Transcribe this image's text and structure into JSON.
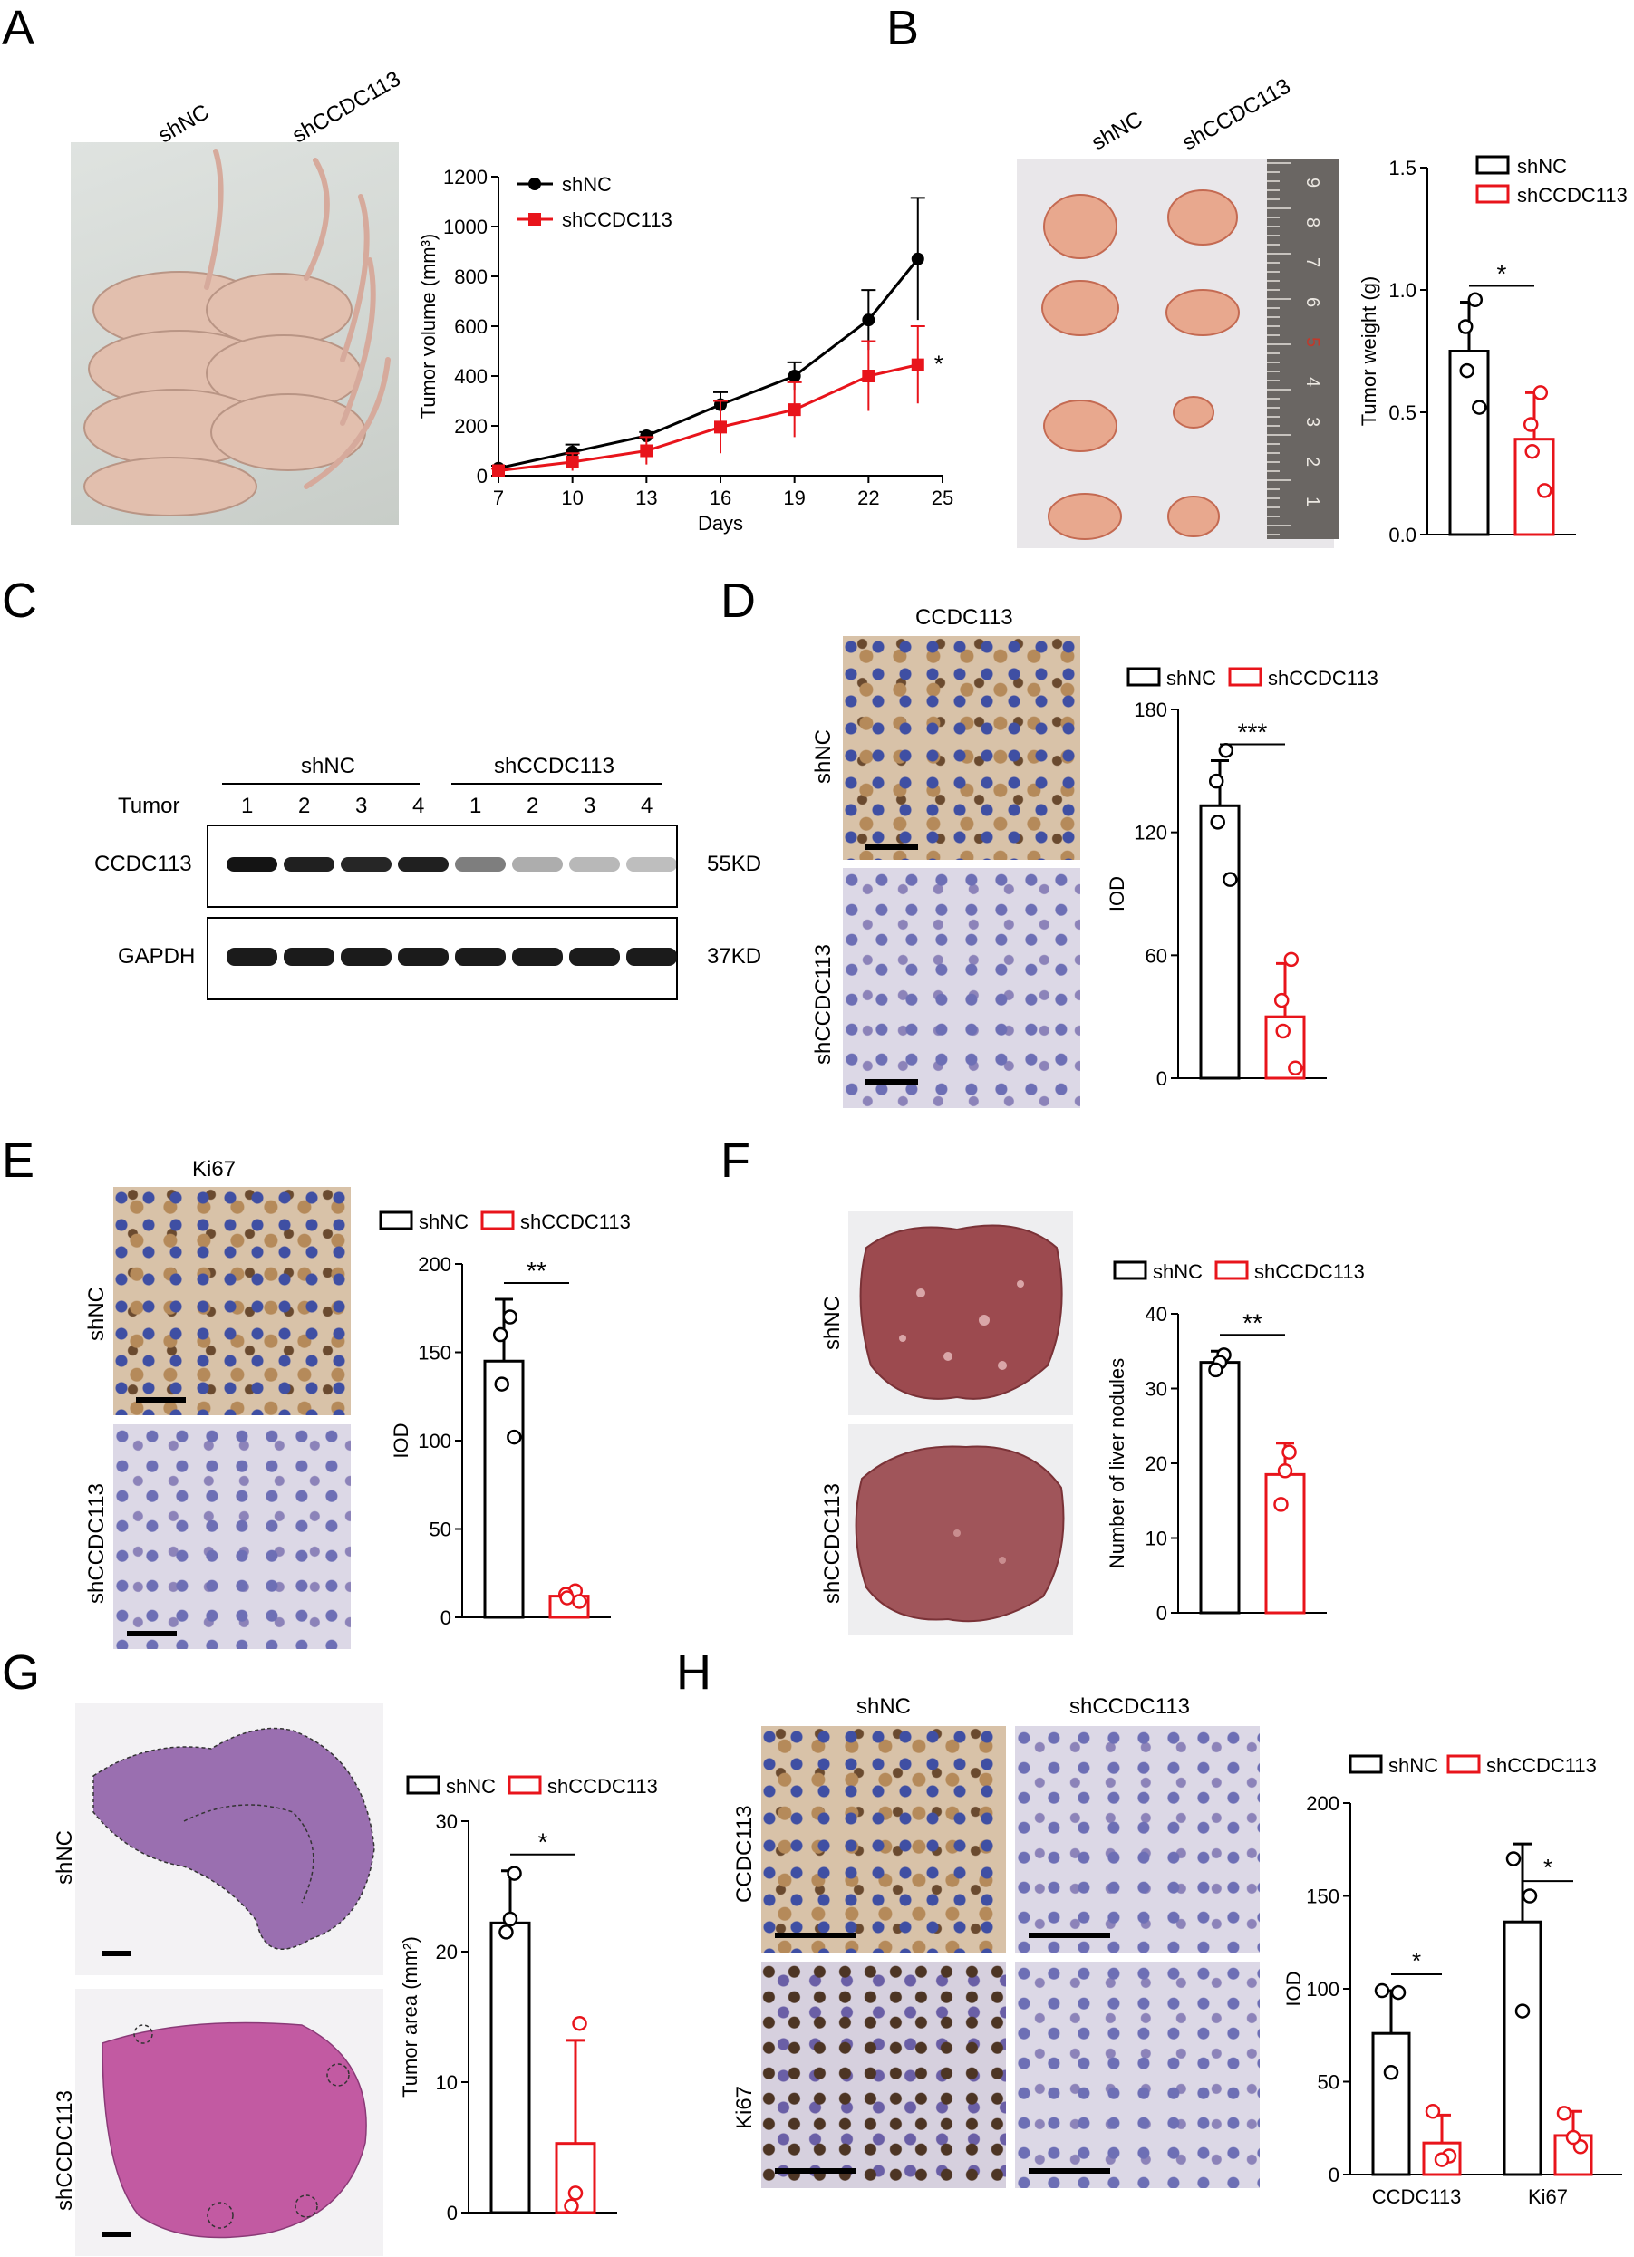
{
  "panels": {
    "A": "A",
    "B": "B",
    "C": "C",
    "D": "D",
    "E": "E",
    "F": "F",
    "G": "G",
    "H": "H"
  },
  "groups": {
    "nc": "shNC",
    "kd": "shCCDC113"
  },
  "colors": {
    "nc": "#000000",
    "kd": "#e8141b"
  },
  "A": {
    "photo_labels": [
      "shNC",
      "shCCDC113"
    ],
    "chart_data": {
      "type": "line",
      "x": [
        7,
        10,
        13,
        16,
        19,
        22,
        24
      ],
      "series": [
        {
          "name": "shNC",
          "values": [
            30,
            95,
            160,
            285,
            400,
            625,
            870
          ],
          "err": [
            10,
            30,
            15,
            50,
            55,
            120,
            245
          ]
        },
        {
          "name": "shCCDC113",
          "values": [
            20,
            55,
            100,
            195,
            265,
            400,
            445
          ],
          "err": [
            8,
            35,
            55,
            105,
            110,
            140,
            155
          ]
        }
      ],
      "xticks": [
        7,
        10,
        13,
        16,
        19,
        22,
        25
      ],
      "yticks": [
        0,
        200,
        400,
        600,
        800,
        1000,
        1200
      ],
      "xlabel": "Days",
      "ylabel": "Tumor volume (mm³)",
      "ylim": [
        0,
        1200
      ],
      "annotation": "*"
    }
  },
  "B": {
    "photo_labels": [
      "shNC",
      "shCCDC113"
    ],
    "ruler_numbers": [
      "1",
      "2",
      "3",
      "4",
      "5",
      "6",
      "7",
      "8",
      "9"
    ],
    "chart_data": {
      "type": "bar",
      "categories": [
        "shNC",
        "shCCDC113"
      ],
      "values": [
        0.75,
        0.39
      ],
      "err": [
        0.2,
        0.19
      ],
      "points": [
        [
          0.96,
          0.85,
          0.67,
          0.52
        ],
        [
          0.58,
          0.45,
          0.34,
          0.18
        ]
      ],
      "yticks": [
        "0.0",
        "0.5",
        "1.0",
        "1.5"
      ],
      "ylim": [
        0,
        1.5
      ],
      "ylabel": "Tumor weight (g)",
      "sig": "*"
    }
  },
  "C": {
    "group_labels": [
      "shNC",
      "shCCDC113"
    ],
    "tumor_label": "Tumor",
    "lanes": [
      "1",
      "2",
      "3",
      "4",
      "1",
      "2",
      "3",
      "4"
    ],
    "rows": [
      {
        "protein": "CCDC113",
        "size": "55KD"
      },
      {
        "protein": "GAPDH",
        "size": "37KD"
      }
    ]
  },
  "D": {
    "title": "CCDC113",
    "row_labels": [
      "shNC",
      "shCCDC113"
    ],
    "chart_data": {
      "type": "bar",
      "categories": [
        "shNC",
        "shCCDC113"
      ],
      "values": [
        133,
        30
      ],
      "err": [
        22,
        26
      ],
      "points": [
        [
          160,
          145,
          125,
          97
        ],
        [
          58,
          38,
          23,
          5
        ]
      ],
      "yticks": [
        "0",
        "60",
        "120",
        "180"
      ],
      "ylim": [
        0,
        180
      ],
      "ylabel": "IOD",
      "sig": "***"
    }
  },
  "E": {
    "title": "Ki67",
    "row_labels": [
      "shNC",
      "shCCDC113"
    ],
    "chart_data": {
      "type": "bar",
      "categories": [
        "shNC",
        "shCCDC113"
      ],
      "values": [
        145,
        12
      ],
      "err": [
        35,
        3
      ],
      "points": [
        [
          170,
          160,
          132,
          102
        ],
        [
          15,
          13,
          11,
          9
        ]
      ],
      "yticks": [
        "0",
        "50",
        "100",
        "150",
        "200"
      ],
      "ylim": [
        0,
        200
      ],
      "ylabel": "IOD",
      "sig": "**"
    }
  },
  "F": {
    "row_labels": [
      "shNC",
      "shCCDC113"
    ],
    "chart_data": {
      "type": "bar",
      "categories": [
        "shNC",
        "shCCDC113"
      ],
      "values": [
        33.5,
        18.5
      ],
      "err": [
        1.5,
        4.2
      ],
      "points": [
        [
          34.5,
          33.5,
          32.5
        ],
        [
          21.5,
          19,
          14.5
        ]
      ],
      "yticks": [
        "0",
        "10",
        "20",
        "30",
        "40"
      ],
      "ylim": [
        0,
        40
      ],
      "ylabel": "Number of liver nodules",
      "sig": "**"
    }
  },
  "G": {
    "row_labels": [
      "shNC",
      "shCCDC113"
    ],
    "chart_data": {
      "type": "bar",
      "categories": [
        "shNC",
        "shCCDC113"
      ],
      "values": [
        22.2,
        5.3
      ],
      "err": [
        4.0,
        7.9
      ],
      "points": [
        [
          26,
          22.5,
          21.5
        ],
        [
          14.5,
          1.5,
          0.5
        ]
      ],
      "yticks": [
        "0",
        "10",
        "20",
        "30"
      ],
      "ylim": [
        0,
        30
      ],
      "ylabel": "Tumor area  (mm²)",
      "sig": "*"
    }
  },
  "H": {
    "col_labels": [
      "shNC",
      "shCCDC113"
    ],
    "row_labels": [
      "CCDC113",
      "Ki67"
    ],
    "chart_data": {
      "type": "bar",
      "categories": [
        "CCDC113",
        "Ki67"
      ],
      "series": [
        {
          "name": "shNC",
          "values": [
            76,
            136
          ],
          "err": [
            23,
            42
          ],
          "points": [
            [
              99,
              98,
              55
            ],
            [
              170,
              150,
              88
            ]
          ]
        },
        {
          "name": "shCCDC113",
          "values": [
            17,
            21
          ],
          "err": [
            15,
            13
          ],
          "points": [
            [
              34,
              10,
              8
            ],
            [
              33,
              15,
              20
            ]
          ]
        }
      ],
      "yticks": [
        "0",
        "50",
        "100",
        "150",
        "200"
      ],
      "ylim": [
        0,
        200
      ],
      "ylabel": "IOD",
      "sig": [
        "*",
        "*"
      ]
    }
  }
}
